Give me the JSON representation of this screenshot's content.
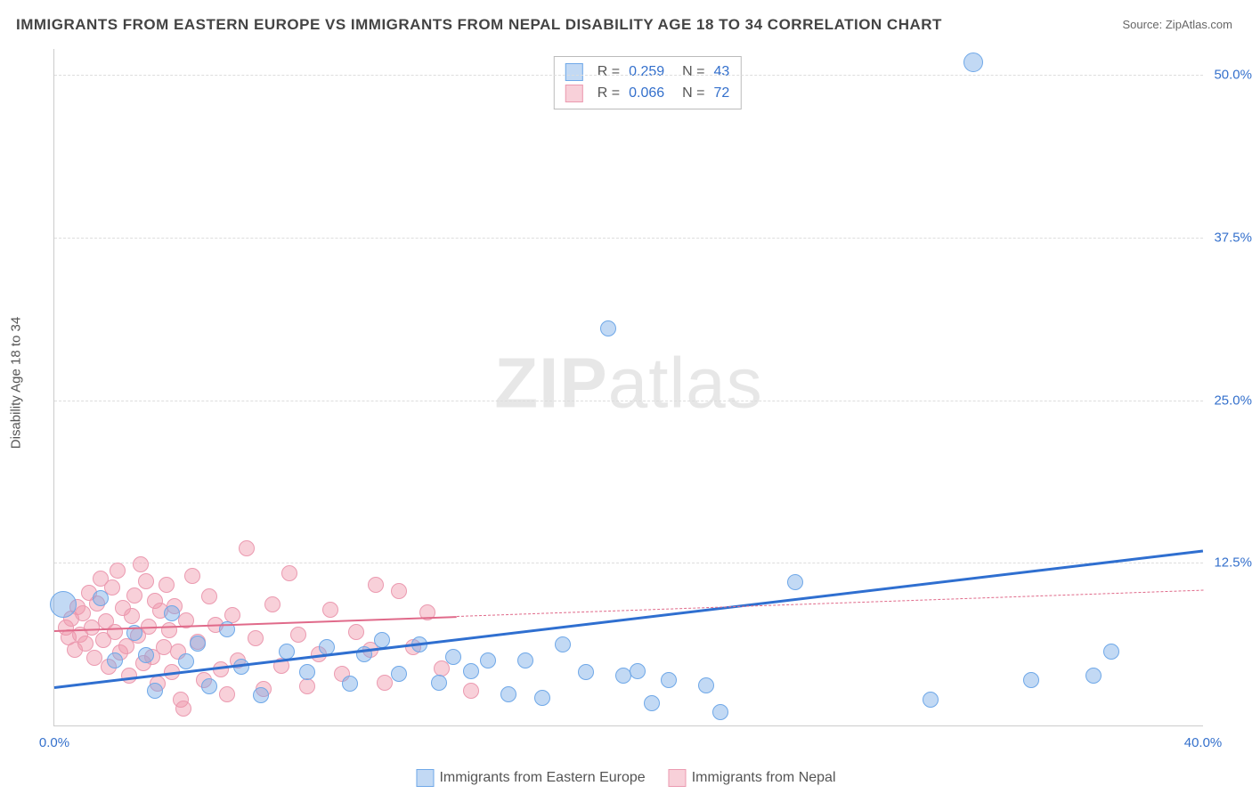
{
  "title": "IMMIGRANTS FROM EASTERN EUROPE VS IMMIGRANTS FROM NEPAL DISABILITY AGE 18 TO 34 CORRELATION CHART",
  "source_label": "Source: ",
  "source_name": "ZipAtlas.com",
  "watermark_a": "ZIP",
  "watermark_b": "atlas",
  "chart": {
    "type": "scatter",
    "background_color": "#ffffff",
    "grid_color": "#dddddd",
    "axis_color": "#cccccc",
    "yaxis_title": "Disability Age 18 to 34",
    "yaxis_title_fontsize": 15,
    "tick_label_color": "#3470cc",
    "tick_fontsize": 15,
    "xlim": [
      0,
      40
    ],
    "ylim": [
      0,
      52
    ],
    "yticks": [
      {
        "v": 12.5,
        "label": "12.5%"
      },
      {
        "v": 25.0,
        "label": "25.0%"
      },
      {
        "v": 37.5,
        "label": "37.5%"
      },
      {
        "v": 50.0,
        "label": "50.0%"
      }
    ],
    "xticks": [
      {
        "v": 0,
        "label": "0.0%"
      },
      {
        "v": 40,
        "label": "40.0%"
      }
    ],
    "series": [
      {
        "name": "Immigrants from Eastern Europe",
        "fill_color": "rgba(120,170,230,0.45)",
        "stroke_color": "#6fa8e8",
        "trend_color": "#2f6fd0",
        "trend_width": 3,
        "trend_solid": true,
        "trend": {
          "x1": 0,
          "y1": 3.0,
          "x2": 40,
          "y2": 13.5
        },
        "marker_radius": 8,
        "points": [
          {
            "x": 0.3,
            "y": 9.3,
            "r": 14
          },
          {
            "x": 1.6,
            "y": 9.8
          },
          {
            "x": 2.1,
            "y": 5.0
          },
          {
            "x": 2.8,
            "y": 7.1
          },
          {
            "x": 3.2,
            "y": 5.4
          },
          {
            "x": 3.5,
            "y": 2.7
          },
          {
            "x": 4.1,
            "y": 8.6
          },
          {
            "x": 4.6,
            "y": 4.9
          },
          {
            "x": 5.0,
            "y": 6.3
          },
          {
            "x": 5.4,
            "y": 3.0
          },
          {
            "x": 6.0,
            "y": 7.4
          },
          {
            "x": 6.5,
            "y": 4.5
          },
          {
            "x": 7.2,
            "y": 2.3
          },
          {
            "x": 8.1,
            "y": 5.7
          },
          {
            "x": 8.8,
            "y": 4.1
          },
          {
            "x": 9.5,
            "y": 6.0
          },
          {
            "x": 10.3,
            "y": 3.2
          },
          {
            "x": 10.8,
            "y": 5.5
          },
          {
            "x": 11.4,
            "y": 6.6
          },
          {
            "x": 12.0,
            "y": 4.0
          },
          {
            "x": 12.7,
            "y": 6.2
          },
          {
            "x": 13.4,
            "y": 3.3
          },
          {
            "x": 13.9,
            "y": 5.3
          },
          {
            "x": 14.5,
            "y": 4.2
          },
          {
            "x": 15.1,
            "y": 5.0
          },
          {
            "x": 15.8,
            "y": 2.4
          },
          {
            "x": 16.4,
            "y": 5.0
          },
          {
            "x": 17.0,
            "y": 2.1
          },
          {
            "x": 17.7,
            "y": 6.2
          },
          {
            "x": 18.5,
            "y": 4.1
          },
          {
            "x": 19.3,
            "y": 30.5
          },
          {
            "x": 19.8,
            "y": 3.8
          },
          {
            "x": 20.3,
            "y": 4.2
          },
          {
            "x": 20.8,
            "y": 1.7
          },
          {
            "x": 21.4,
            "y": 3.5
          },
          {
            "x": 22.7,
            "y": 3.1
          },
          {
            "x": 23.2,
            "y": 1.0
          },
          {
            "x": 25.8,
            "y": 11.0
          },
          {
            "x": 32.0,
            "y": 51.0,
            "r": 10
          },
          {
            "x": 34.0,
            "y": 3.5
          },
          {
            "x": 36.2,
            "y": 3.8
          },
          {
            "x": 36.8,
            "y": 5.7
          },
          {
            "x": 30.5,
            "y": 2.0
          }
        ]
      },
      {
        "name": "Immigrants from Nepal",
        "fill_color": "rgba(240,150,170,0.45)",
        "stroke_color": "#eb9ab0",
        "trend_color": "#e06a8a",
        "trend_width": 2,
        "trend_solid_end": 14,
        "trend": {
          "x1": 0,
          "y1": 7.3,
          "x2": 40,
          "y2": 10.4
        },
        "marker_radius": 8,
        "points": [
          {
            "x": 0.4,
            "y": 7.5
          },
          {
            "x": 0.5,
            "y": 6.8
          },
          {
            "x": 0.6,
            "y": 8.2
          },
          {
            "x": 0.7,
            "y": 5.8
          },
          {
            "x": 0.8,
            "y": 9.1
          },
          {
            "x": 0.9,
            "y": 7.0
          },
          {
            "x": 1.0,
            "y": 8.6
          },
          {
            "x": 1.1,
            "y": 6.3
          },
          {
            "x": 1.2,
            "y": 10.2
          },
          {
            "x": 1.3,
            "y": 7.5
          },
          {
            "x": 1.4,
            "y": 5.2
          },
          {
            "x": 1.5,
            "y": 9.4
          },
          {
            "x": 1.6,
            "y": 11.3
          },
          {
            "x": 1.7,
            "y": 6.6
          },
          {
            "x": 1.8,
            "y": 8.0
          },
          {
            "x": 1.9,
            "y": 4.5
          },
          {
            "x": 2.0,
            "y": 10.6
          },
          {
            "x": 2.1,
            "y": 7.2
          },
          {
            "x": 2.2,
            "y": 11.9
          },
          {
            "x": 2.3,
            "y": 5.6
          },
          {
            "x": 2.4,
            "y": 9.0
          },
          {
            "x": 2.5,
            "y": 6.1
          },
          {
            "x": 2.6,
            "y": 3.8
          },
          {
            "x": 2.7,
            "y": 8.4
          },
          {
            "x": 2.8,
            "y": 10.0
          },
          {
            "x": 2.9,
            "y": 6.9
          },
          {
            "x": 3.0,
            "y": 12.4
          },
          {
            "x": 3.1,
            "y": 4.8
          },
          {
            "x": 3.2,
            "y": 11.1
          },
          {
            "x": 3.3,
            "y": 7.6
          },
          {
            "x": 3.4,
            "y": 5.3
          },
          {
            "x": 3.5,
            "y": 9.6
          },
          {
            "x": 3.6,
            "y": 3.2
          },
          {
            "x": 3.7,
            "y": 8.8
          },
          {
            "x": 3.8,
            "y": 6.0
          },
          {
            "x": 3.9,
            "y": 10.8
          },
          {
            "x": 4.0,
            "y": 7.3
          },
          {
            "x": 4.1,
            "y": 4.1
          },
          {
            "x": 4.2,
            "y": 9.2
          },
          {
            "x": 4.3,
            "y": 5.7
          },
          {
            "x": 4.4,
            "y": 2.0
          },
          {
            "x": 4.5,
            "y": 1.3
          },
          {
            "x": 4.6,
            "y": 8.1
          },
          {
            "x": 4.8,
            "y": 11.5
          },
          {
            "x": 5.0,
            "y": 6.4
          },
          {
            "x": 5.2,
            "y": 3.5
          },
          {
            "x": 5.4,
            "y": 9.9
          },
          {
            "x": 5.6,
            "y": 7.7
          },
          {
            "x": 5.8,
            "y": 4.3
          },
          {
            "x": 6.0,
            "y": 2.4
          },
          {
            "x": 6.2,
            "y": 8.5
          },
          {
            "x": 6.4,
            "y": 5.0
          },
          {
            "x": 6.7,
            "y": 13.6
          },
          {
            "x": 7.0,
            "y": 6.7
          },
          {
            "x": 7.3,
            "y": 2.8
          },
          {
            "x": 7.6,
            "y": 9.3
          },
          {
            "x": 7.9,
            "y": 4.6
          },
          {
            "x": 8.2,
            "y": 11.7
          },
          {
            "x": 8.5,
            "y": 7.0
          },
          {
            "x": 8.8,
            "y": 3.0
          },
          {
            "x": 9.2,
            "y": 5.5
          },
          {
            "x": 9.6,
            "y": 8.9
          },
          {
            "x": 10.0,
            "y": 4.0
          },
          {
            "x": 10.5,
            "y": 7.2
          },
          {
            "x": 11.0,
            "y": 5.8
          },
          {
            "x": 11.2,
            "y": 10.8
          },
          {
            "x": 11.5,
            "y": 3.3
          },
          {
            "x": 12.0,
            "y": 10.3
          },
          {
            "x": 12.5,
            "y": 6.0
          },
          {
            "x": 13.0,
            "y": 8.7
          },
          {
            "x": 13.5,
            "y": 4.4
          },
          {
            "x": 14.5,
            "y": 2.7
          }
        ]
      }
    ],
    "stats": [
      {
        "swatch_fill": "rgba(120,170,230,0.45)",
        "swatch_stroke": "#6fa8e8",
        "r_label": "R  =",
        "r_val": "0.259",
        "n_label": "N  =",
        "n_val": "43"
      },
      {
        "swatch_fill": "rgba(240,150,170,0.45)",
        "swatch_stroke": "#eb9ab0",
        "r_label": "R  =",
        "r_val": "0.066",
        "n_label": "N  =",
        "n_val": "72"
      }
    ],
    "bottom_legend": [
      {
        "fill": "rgba(120,170,230,0.45)",
        "stroke": "#6fa8e8",
        "label": "Immigrants from Eastern Europe"
      },
      {
        "fill": "rgba(240,150,170,0.45)",
        "stroke": "#eb9ab0",
        "label": "Immigrants from Nepal"
      }
    ]
  }
}
